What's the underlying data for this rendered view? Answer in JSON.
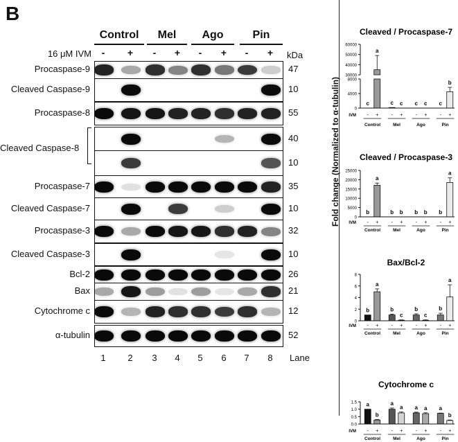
{
  "panel_label": "B",
  "treatment_label": "16 μM IVM",
  "kda_label": "kDa",
  "lane_title": "Lane",
  "groups": [
    "Control",
    "Mel",
    "Ago",
    "Pin"
  ],
  "ivm_signs": [
    "-",
    "+",
    "-",
    "+",
    "-",
    "+",
    "-",
    "+"
  ],
  "lanes": [
    "1",
    "2",
    "3",
    "4",
    "5",
    "6",
    "7",
    "8"
  ],
  "blots": [
    {
      "label": "Procaspase-9",
      "kda": "47",
      "intensity": [
        0.9,
        0.35,
        0.85,
        0.5,
        0.85,
        0.55,
        0.8,
        0.2
      ]
    },
    {
      "label": "Cleaved Caspase-9",
      "kda": "10",
      "intensity": [
        0,
        1,
        0,
        0,
        0,
        0,
        0,
        1
      ]
    },
    {
      "label": "Procaspase-8",
      "kda": "55",
      "intensity": [
        1,
        0.95,
        0.95,
        0.9,
        0.9,
        0.85,
        0.9,
        0.9
      ]
    },
    {
      "label": "",
      "kda": "40",
      "intensity": [
        0,
        1,
        0,
        0,
        0,
        0.3,
        0,
        1
      ]
    },
    {
      "label": "",
      "kda": "10",
      "intensity": [
        0,
        0.8,
        0,
        0,
        0,
        0,
        0,
        0.7
      ]
    },
    {
      "label": "Procaspase-7",
      "kda": "35",
      "intensity": [
        1,
        0.12,
        1,
        1,
        1,
        1,
        1,
        0.9
      ]
    },
    {
      "label": "Cleaved Caspase-7",
      "kda": "10",
      "intensity": [
        0,
        1,
        0,
        0.8,
        0,
        0.2,
        0,
        1
      ]
    },
    {
      "label": "Procaspase-3",
      "kda": "32",
      "intensity": [
        1,
        0.35,
        1,
        0.95,
        0.95,
        0.85,
        0.9,
        0.5
      ]
    },
    {
      "label": "Cleaved Caspase-3",
      "kda": "10",
      "intensity": [
        0,
        1,
        0,
        0,
        0,
        0.1,
        0,
        1
      ]
    },
    {
      "label": "Bcl-2",
      "kda": "26",
      "intensity": [
        1,
        1,
        1,
        1,
        1,
        1,
        1,
        1
      ]
    },
    {
      "label": "Bax",
      "kda": "21",
      "intensity": [
        0.35,
        0.95,
        0.4,
        0.12,
        0.4,
        0.1,
        0.35,
        0.85
      ]
    },
    {
      "label": "Cytochrome c",
      "kda": "12",
      "intensity": [
        1,
        0.3,
        0.9,
        0.85,
        0.85,
        0.8,
        0.85,
        0.3
      ]
    },
    {
      "label": "α-tubulin",
      "kda": "52",
      "intensity": [
        1,
        1,
        1,
        1,
        1,
        1,
        1,
        1
      ]
    }
  ],
  "cleaved_caspase8_label": "Cleaved Caspase-8",
  "shared_ylabel": "Fold change (Normalized to α-tubulin)",
  "chart_data": [
    {
      "type": "bar",
      "title": "Cleaved / Procaspase-7",
      "ivm_label": "IVM",
      "categories": [
        "-",
        "+",
        "-",
        "+",
        "-",
        "+",
        "-",
        "+"
      ],
      "groups": [
        "Control",
        "Mel",
        "Ago",
        "Pin"
      ],
      "values": [
        0,
        35000,
        150,
        0,
        0,
        0,
        0,
        4500
      ],
      "errors": [
        0,
        14000,
        0,
        0,
        0,
        0,
        0,
        1200
      ],
      "letters": [
        "c",
        "a",
        "c",
        "c",
        "c",
        "c",
        "c",
        "b"
      ],
      "broken_axis": true,
      "ylim_lower": [
        0,
        8000
      ],
      "ylim_upper": [
        30000,
        60000
      ],
      "yticks": [
        "0",
        "4000",
        "8000",
        "30000",
        "40000",
        "50000",
        "60000"
      ]
    },
    {
      "type": "bar",
      "title": "Cleaved / Procaspase-3",
      "ivm_label": "IVM",
      "categories": [
        "-",
        "+",
        "-",
        "+",
        "-",
        "+",
        "-",
        "+"
      ],
      "groups": [
        "Control",
        "Mel",
        "Ago",
        "Pin"
      ],
      "values": [
        0,
        17000,
        0,
        0,
        0,
        0,
        0,
        18500
      ],
      "errors": [
        0,
        1200,
        0,
        0,
        0,
        0,
        0,
        2500
      ],
      "letters": [
        "b",
        "a",
        "b",
        "b",
        "b",
        "b",
        "b",
        "a"
      ],
      "ylim": [
        0,
        25000
      ],
      "yticks": [
        "0",
        "5000",
        "10000",
        "15000",
        "20000",
        "25000"
      ]
    },
    {
      "type": "bar",
      "title": "Bax/Bcl-2",
      "ivm_label": "IVM",
      "categories": [
        "-",
        "+",
        "-",
        "+",
        "-",
        "+",
        "-",
        "+"
      ],
      "groups": [
        "Control",
        "Mel",
        "Ago",
        "Pin"
      ],
      "values": [
        1.0,
        5.0,
        1.0,
        0.1,
        1.0,
        0.1,
        1.0,
        4.1
      ],
      "errors": [
        0,
        0.5,
        0.15,
        0.05,
        0.2,
        0.05,
        0.3,
        2.1
      ],
      "letters": [
        "b",
        "a",
        "b",
        "c",
        "b",
        "c",
        "b",
        "a"
      ],
      "ylim": [
        0,
        8
      ],
      "yticks": [
        "0",
        "2",
        "4",
        "6",
        "8"
      ]
    },
    {
      "type": "bar",
      "title": "Cytochrome c",
      "ivm_label": "IVM",
      "categories": [
        "-",
        "+",
        "-",
        "+",
        "-",
        "+",
        "-",
        "+"
      ],
      "groups": [
        "Control",
        "Mel",
        "Ago",
        "Pin"
      ],
      "values": [
        1.0,
        0.27,
        1.0,
        0.75,
        0.75,
        0.7,
        0.72,
        0.24
      ],
      "errors": [
        0,
        0.03,
        0.08,
        0.06,
        0.05,
        0.06,
        0.02,
        0.03
      ],
      "letters": [
        "a",
        "b",
        "a",
        "a",
        "a",
        "a",
        "a",
        "b"
      ],
      "ylim": [
        0,
        1.5
      ],
      "yticks": [
        "0.0",
        "0.5",
        "1.0",
        "1.5"
      ]
    }
  ],
  "colors": {
    "control": "#111111",
    "control_plus": "#999999",
    "mel": "#555555",
    "mel_plus": "#d4d4d4",
    "ago": "#666666",
    "ago_plus": "#aaaaaa",
    "pin": "#777777",
    "pin_plus": "#ececec"
  }
}
